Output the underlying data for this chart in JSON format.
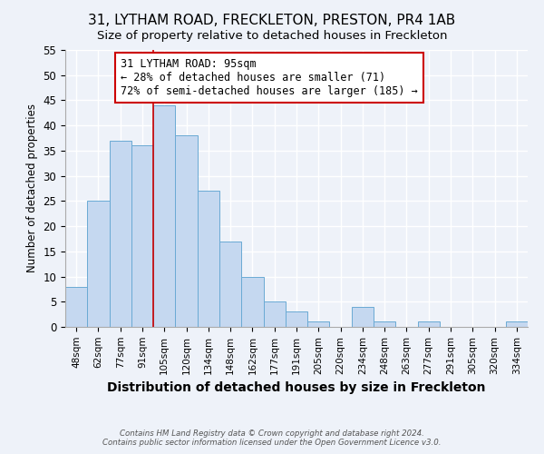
{
  "title": "31, LYTHAM ROAD, FRECKLETON, PRESTON, PR4 1AB",
  "subtitle": "Size of property relative to detached houses in Freckleton",
  "xlabel": "Distribution of detached houses by size in Freckleton",
  "ylabel": "Number of detached properties",
  "bar_labels": [
    "48sqm",
    "62sqm",
    "77sqm",
    "91sqm",
    "105sqm",
    "120sqm",
    "134sqm",
    "148sqm",
    "162sqm",
    "177sqm",
    "191sqm",
    "205sqm",
    "220sqm",
    "234sqm",
    "248sqm",
    "263sqm",
    "277sqm",
    "291sqm",
    "305sqm",
    "320sqm",
    "334sqm"
  ],
  "bar_values": [
    8,
    25,
    37,
    36,
    44,
    38,
    27,
    17,
    10,
    5,
    3,
    1,
    0,
    4,
    1,
    0,
    1,
    0,
    0,
    0,
    1
  ],
  "bar_color": "#c5d8f0",
  "bar_edge_color": "#6aaad4",
  "vline_x": 3.5,
  "vline_color": "#cc0000",
  "annotation_title": "31 LYTHAM ROAD: 95sqm",
  "annotation_line1": "← 28% of detached houses are smaller (71)",
  "annotation_line2": "72% of semi-detached houses are larger (185) →",
  "annotation_box_color": "#ffffff",
  "annotation_box_edge": "#cc0000",
  "ylim": [
    0,
    55
  ],
  "yticks": [
    0,
    5,
    10,
    15,
    20,
    25,
    30,
    35,
    40,
    45,
    50,
    55
  ],
  "footer_line1": "Contains HM Land Registry data © Crown copyright and database right 2024.",
  "footer_line2": "Contains public sector information licensed under the Open Government Licence v3.0.",
  "background_color": "#eef2f9",
  "title_fontsize": 11,
  "subtitle_fontsize": 9.5,
  "xlabel_fontsize": 10,
  "ylabel_fontsize": 8.5
}
